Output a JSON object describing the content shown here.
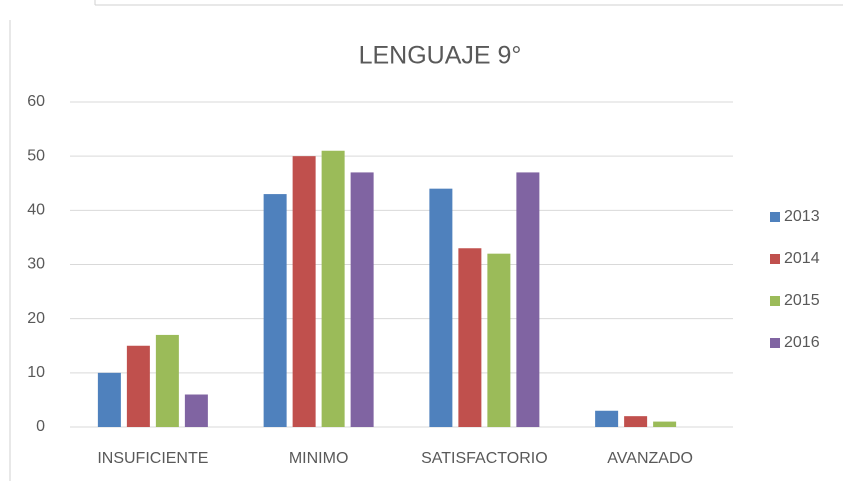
{
  "chart_data": {
    "type": "bar",
    "title": "LENGUAJE 9°",
    "categories": [
      "INSUFICIENTE",
      "MINIMO",
      "SATISFACTORIO",
      "AVANZADO"
    ],
    "series": [
      {
        "name": "2013",
        "color": "#4f81bd",
        "values": [
          10,
          43,
          44,
          3
        ]
      },
      {
        "name": "2014",
        "color": "#c0504d",
        "values": [
          15,
          50,
          33,
          2
        ]
      },
      {
        "name": "2015",
        "color": "#9bbb59",
        "values": [
          17,
          51,
          32,
          1
        ]
      },
      {
        "name": "2016",
        "color": "#8064a2",
        "values": [
          6,
          47,
          47,
          0
        ]
      }
    ],
    "ylim": [
      0,
      60
    ],
    "yticks": [
      0,
      10,
      20,
      30,
      40,
      50,
      60
    ],
    "grid": true,
    "legend": "right"
  }
}
